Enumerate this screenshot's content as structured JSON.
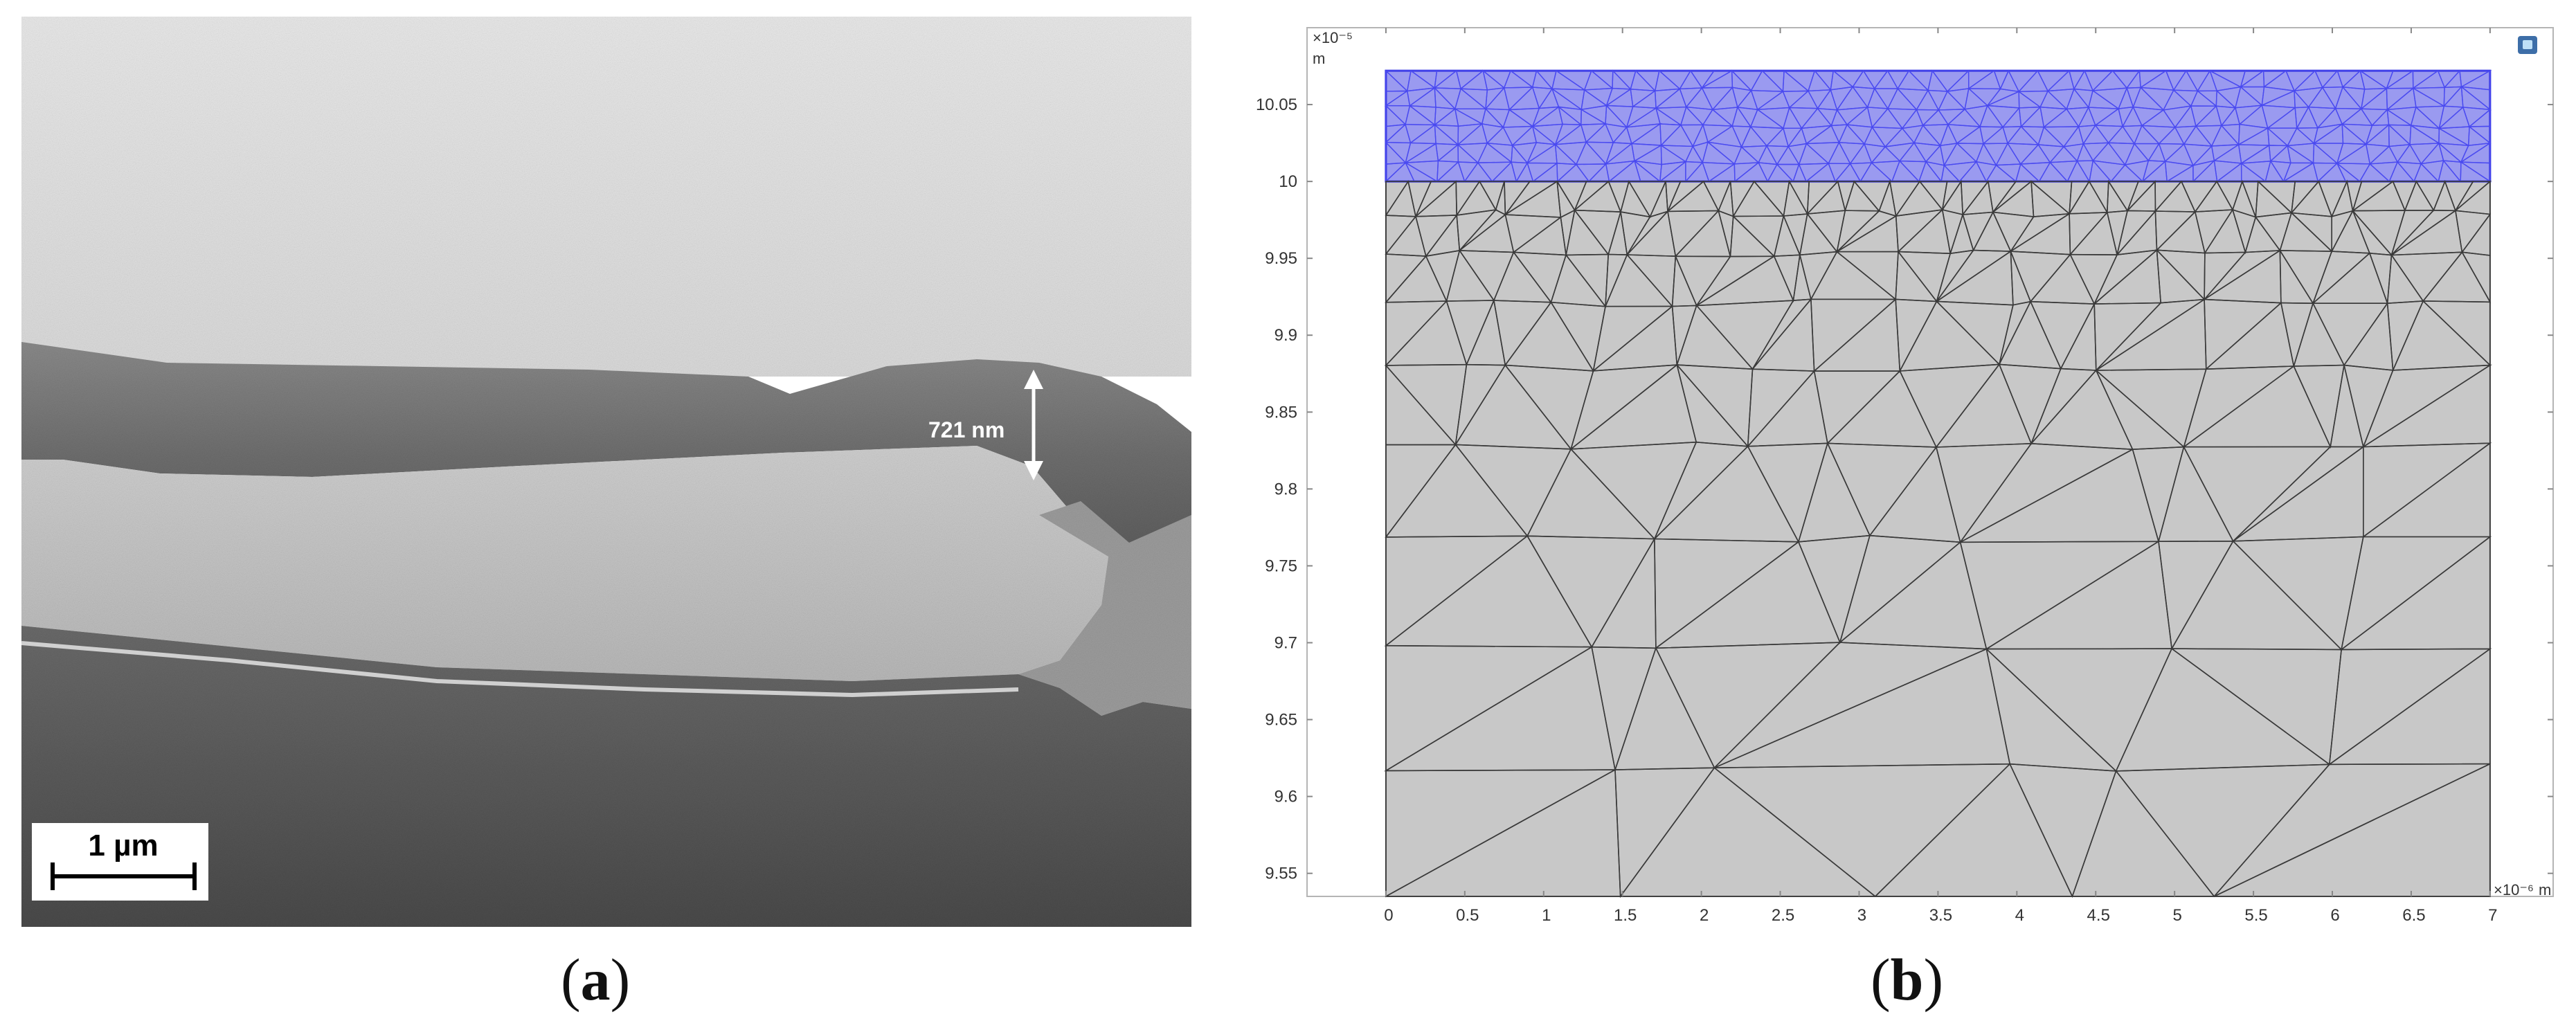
{
  "panel_a": {
    "thickness_label": "721 nm",
    "scale_bar_label": "1 µm"
  },
  "panel_b": {
    "y_multiplier": "×10⁻⁵",
    "y_unit": "m",
    "x_multiplier": "×10⁻⁶",
    "x_unit": "m",
    "y_ticks": [
      "10.05",
      "10",
      "9.95",
      "9.9",
      "9.85",
      "9.8",
      "9.75",
      "9.7",
      "9.65",
      "9.6",
      "9.55"
    ],
    "y_tick_values": [
      10.05,
      10.0,
      9.95,
      9.9,
      9.85,
      9.8,
      9.75,
      9.7,
      9.65,
      9.6,
      9.55
    ],
    "x_ticks": [
      "0",
      "0.5",
      "1",
      "1.5",
      "2",
      "2.5",
      "3",
      "3.5",
      "4",
      "4.5",
      "5",
      "5.5",
      "6",
      "6.5",
      "7"
    ],
    "x_tick_values": [
      0,
      0.5,
      1,
      1.5,
      2,
      2.5,
      3,
      3.5,
      4,
      4.5,
      5,
      5.5,
      6,
      6.5,
      7
    ],
    "x_range": [
      -0.5,
      7.4
    ],
    "y_range": [
      9.535,
      10.1
    ],
    "substrate_domain": {
      "x": [
        0,
        7
      ],
      "y": [
        9.535,
        10.0
      ],
      "color": "#c8c8c8"
    },
    "film_domain": {
      "x": [
        0,
        7
      ],
      "y": [
        10.0,
        10.072
      ],
      "color": "#9a9af0"
    }
  },
  "captions": {
    "a": "a",
    "b": "b",
    "open": "(",
    "close": ")"
  }
}
